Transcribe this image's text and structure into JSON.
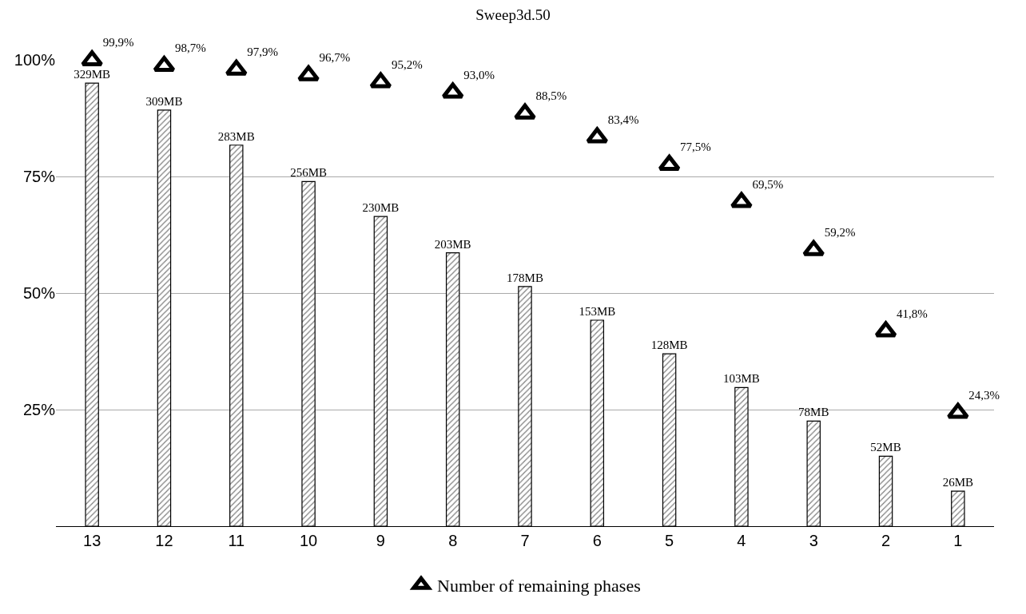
{
  "chart_data": {
    "type": "bar",
    "title": "Sweep3d.50",
    "categories": [
      "13",
      "12",
      "11",
      "10",
      "9",
      "8",
      "7",
      "6",
      "5",
      "4",
      "3",
      "2",
      "1"
    ],
    "series": [
      {
        "axis": "y2",
        "color": "#000000",
        "values": [
          329,
          309,
          283,
          256,
          230,
          203,
          178,
          153,
          128,
          103,
          78,
          52,
          26
        ],
        "value_labels": [
          "329MB",
          "309MB",
          "283MB",
          "256MB",
          "230MB",
          "203MB",
          "178MB",
          "153MB",
          "128MB",
          "103MB",
          "78MB",
          "52MB",
          "26MB"
        ]
      },
      {
        "type": "scatter",
        "name": "Number of remaining phases",
        "color": "#000000",
        "marker": "triangle",
        "values": [
          99.9,
          98.7,
          97.9,
          96.7,
          95.2,
          93.0,
          88.5,
          83.4,
          77.5,
          69.5,
          59.2,
          41.8,
          24.3
        ],
        "value_labels": [
          "99,9%",
          "98,7%",
          "97,9%",
          "96,7%",
          "95,2%",
          "93,0%",
          "88,5%",
          "83,4%",
          "77,5%",
          "69,5%",
          "59,2%",
          "41,8%",
          "24,3%"
        ]
      }
    ],
    "ylim": [
      0,
      100
    ],
    "yticks": [
      {
        "value": 25,
        "label": "25%"
      },
      {
        "value": 50,
        "label": "50%"
      },
      {
        "value": 75,
        "label": "75%"
      },
      {
        "value": 100,
        "label": "100%"
      }
    ],
    "grid": "y",
    "legend": "bottom",
    "tick_labels": "xy"
  }
}
